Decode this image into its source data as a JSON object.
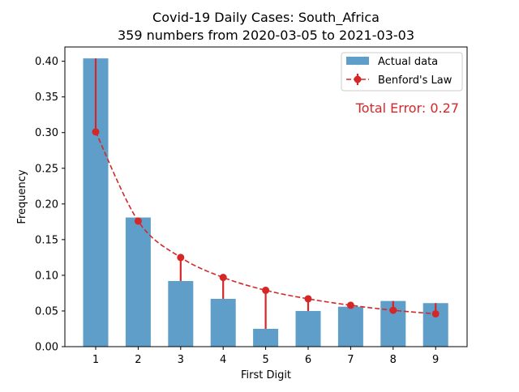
{
  "chart_data": {
    "type": "bar",
    "title_line1": "Covid-19 Daily Cases: South_Africa",
    "title_line2": "359 numbers from 2020-03-05 to 2021-03-03",
    "xlabel": "First Digit",
    "ylabel": "Frequency",
    "categories": [
      "1",
      "2",
      "3",
      "4",
      "5",
      "6",
      "7",
      "8",
      "9"
    ],
    "ylim": [
      0,
      0.42
    ],
    "yticks": [
      "0.00",
      "0.05",
      "0.10",
      "0.15",
      "0.20",
      "0.25",
      "0.30",
      "0.35",
      "0.40"
    ],
    "series": [
      {
        "name": "Actual data",
        "kind": "bar",
        "color": "#5f9ec8",
        "values": [
          0.404,
          0.181,
          0.092,
          0.067,
          0.025,
          0.05,
          0.056,
          0.064,
          0.061
        ]
      },
      {
        "name": "Benford's Law",
        "kind": "line",
        "color": "#d62728",
        "values": [
          0.301,
          0.176,
          0.125,
          0.097,
          0.079,
          0.067,
          0.058,
          0.051,
          0.046
        ]
      }
    ],
    "annotation": "Total Error: 0.27",
    "legend_position": "top-right",
    "grid": false
  }
}
